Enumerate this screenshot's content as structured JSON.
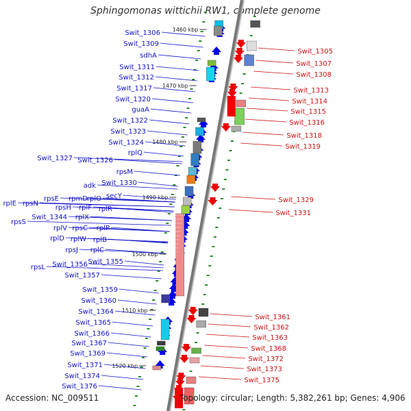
{
  "title": "Sphingomonas wittichii RW1, complete genome",
  "footer": {
    "accession": "Accession: NC_009511",
    "topology": "Topology: circular; Length: 5,382,261 bp; Genes: 4,906"
  },
  "colors": {
    "left_labels": "#1010cc",
    "right_labels": "#cc1010",
    "blue_feature": "#0000ff",
    "red_feature": "#ff0000"
  },
  "scale_labels": [
    "1460 kbp",
    "1470 kbp",
    "1480 kbp",
    "1490 kbp",
    "1500 kbp",
    "1510 kbp",
    "1520 kbp"
  ],
  "left_genes": [
    "Swit_1306",
    "Swit_1309",
    "sdhA",
    "Swit_1311",
    "Swit_1312",
    "Swit_1317",
    "Swit_1320",
    "guaA",
    "Swit_1322",
    "Swit_1323",
    "Swit_1324",
    "rplQ",
    "Swit_1327",
    "Swit_1326",
    "rpsM",
    "adk",
    "Swit_1330",
    "secY",
    "rpsE",
    "rpmD",
    "rplO",
    "rplE",
    "rpsN",
    "rpsH",
    "rplF",
    "rplR",
    "rpsS",
    "Swit_1344",
    "rplX",
    "rplV",
    "rpsC",
    "rplP",
    "rplD",
    "rplW",
    "rplB",
    "rpsJ",
    "rplC",
    "Swit_1356",
    "Swit_1355",
    "rpsL",
    "Swit_1357",
    "Swit_1359",
    "Swit_1360",
    "Swit_1364",
    "Swit_1365",
    "Swit_1366",
    "Swit_1367",
    "Swit_1369",
    "Swit_1371",
    "Swit_1374",
    "Swit_1376"
  ],
  "right_genes": [
    "Swit_1305",
    "Swit_1307",
    "Swit_1308",
    "Swit_1313",
    "Swit_1314",
    "Swit_1315",
    "Swit_1316",
    "Swit_1318",
    "Swit_1319",
    "Swit_1329",
    "Swit_1331",
    "Swit_1361",
    "Swit_1362",
    "Swit_1363",
    "Swit_1368",
    "Swit_1372",
    "Swit_1373",
    "Swit_1375"
  ]
}
